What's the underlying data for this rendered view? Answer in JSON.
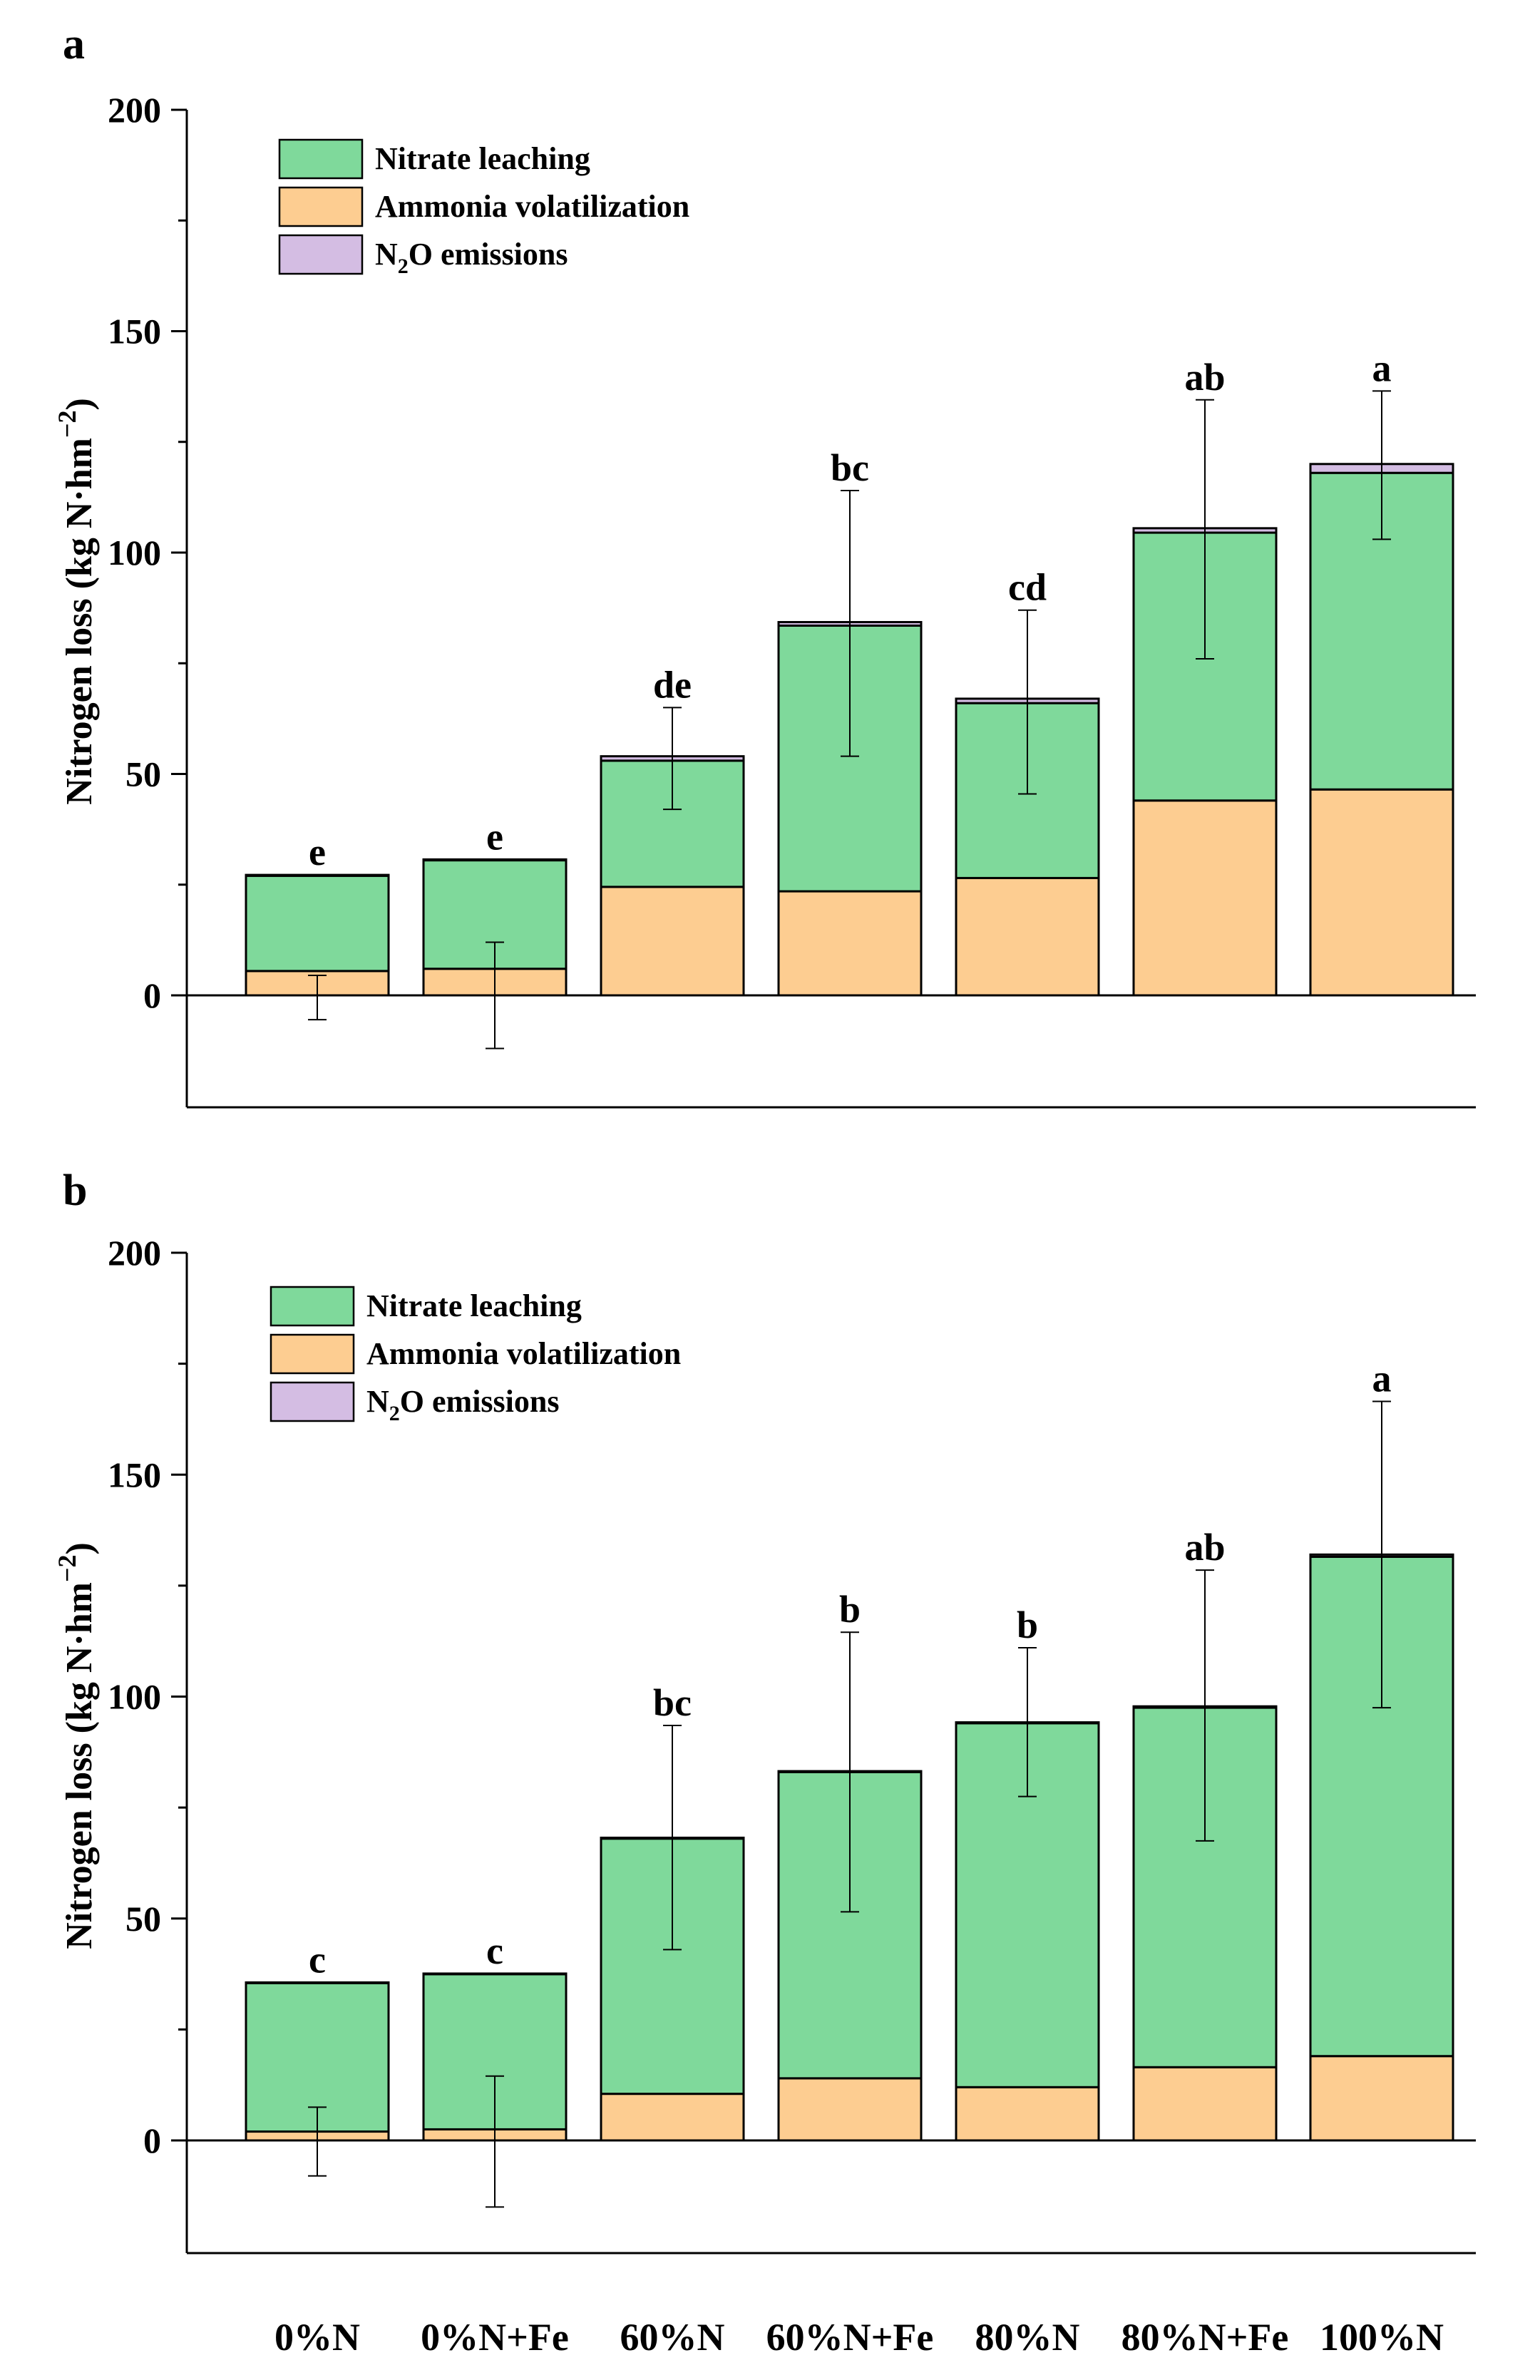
{
  "colors": {
    "nitrate": "#7fd99b",
    "ammonia": "#fdcd91",
    "n2o": "#d4bde3",
    "axis": "#000000"
  },
  "categories": [
    "0%N",
    "0%N+Fe",
    "60%N",
    "60%N+Fe",
    "80%N",
    "80%N+Fe",
    "100%N"
  ],
  "chart_data": [
    {
      "type": "bar",
      "panel_label": "a",
      "stacked": true,
      "ylabel": "Nitrogen loss (kg N·hm",
      "ylabel_sup": "−2",
      "ylabel_close": ")",
      "ylim": [
        -25,
        200
      ],
      "yticks": [
        0,
        50,
        100,
        150,
        200
      ],
      "legend": [
        {
          "key": "nitrate",
          "label": "Nitrate leaching"
        },
        {
          "key": "ammonia",
          "label": "Ammonia volatilization"
        },
        {
          "key": "n2o",
          "label_main": "N",
          "label_sub": "2",
          "label_rest": "O emissions"
        }
      ],
      "legend_position": "top-left",
      "series": [
        {
          "name": "Ammonia volatilization",
          "key": "ammonia",
          "values": [
            5.5,
            6,
            24.5,
            23.5,
            26.5,
            44,
            46.5
          ]
        },
        {
          "name": "Nitrate leaching",
          "key": "nitrate",
          "values": [
            21.5,
            24.5,
            28.5,
            60,
            39.5,
            60.5,
            71.5
          ]
        },
        {
          "name": "N2O emissions",
          "key": "n2o",
          "values": [
            0.2,
            0.2,
            1,
            0.8,
            1,
            1,
            2
          ]
        }
      ],
      "error_bars": [
        {
          "mean": 0,
          "low": -5.5,
          "high": 4.5
        },
        {
          "mean": 0,
          "low": -12,
          "high": 12
        },
        {
          "mean": 53.5,
          "low": 42,
          "high": 65
        },
        {
          "mean": 84,
          "low": 54,
          "high": 114
        },
        {
          "mean": 66.5,
          "low": 45.5,
          "high": 87
        },
        {
          "mean": 105.5,
          "low": 76,
          "high": 134.5
        },
        {
          "mean": 120,
          "low": 103,
          "high": 136.5
        }
      ],
      "significance": [
        "e",
        "e",
        "de",
        "bc",
        "cd",
        "ab",
        "a"
      ]
    },
    {
      "type": "bar",
      "panel_label": "b",
      "stacked": true,
      "ylabel": "Nitrogen loss (kg N·hm",
      "ylabel_sup": "−2",
      "ylabel_close": ")",
      "ylim": [
        -25,
        200
      ],
      "yticks": [
        0,
        50,
        100,
        150,
        200
      ],
      "legend": [
        {
          "key": "nitrate",
          "label": "Nitrate leaching"
        },
        {
          "key": "ammonia",
          "label": "Ammonia volatilization"
        },
        {
          "key": "n2o",
          "label_main": "N",
          "label_sub": "2",
          "label_rest": "O emissions"
        }
      ],
      "legend_position": "top-left",
      "series": [
        {
          "name": "Ammonia volatilization",
          "key": "ammonia",
          "values": [
            2,
            2.5,
            10.5,
            14,
            12,
            16.5,
            19
          ]
        },
        {
          "name": "Nitrate leaching",
          "key": "nitrate",
          "values": [
            33.5,
            35,
            57.5,
            69,
            82,
            81,
            112.5
          ]
        },
        {
          "name": "N2O emissions",
          "key": "n2o",
          "values": [
            0.1,
            0.1,
            0.2,
            0.2,
            0.2,
            0.3,
            0.5
          ]
        }
      ],
      "error_bars": [
        {
          "mean": 0,
          "low": -8,
          "high": 7.5
        },
        {
          "mean": 0,
          "low": -15,
          "high": 14.5
        },
        {
          "mean": 68,
          "low": 43,
          "high": 93.5
        },
        {
          "mean": 83,
          "low": 51.5,
          "high": 114.5
        },
        {
          "mean": 94,
          "low": 77.5,
          "high": 111
        },
        {
          "mean": 98,
          "low": 67.5,
          "high": 128.5
        },
        {
          "mean": 132,
          "low": 97.5,
          "high": 166.5
        }
      ],
      "significance": [
        "c",
        "c",
        "bc",
        "b",
        "b",
        "ab",
        "a"
      ]
    }
  ]
}
